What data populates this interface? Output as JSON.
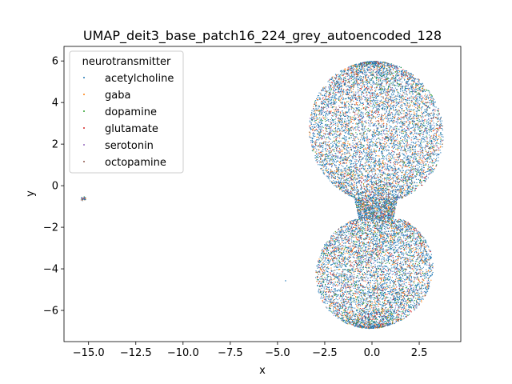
{
  "chart_data": {
    "type": "scatter",
    "title": "UMAP_deit3_base_patch16_224_grey_autoencoded_128",
    "xlabel": "x",
    "ylabel": "y",
    "xlim": [
      -16.3,
      4.7
    ],
    "ylim": [
      -7.5,
      6.7
    ],
    "xticks": [
      -15.0,
      -12.5,
      -10.0,
      -7.5,
      -5.0,
      -2.5,
      0.0,
      2.5
    ],
    "xtick_labels": [
      "−15.0",
      "−12.5",
      "−10.0",
      "−7.5",
      "−5.0",
      "−2.5",
      "0.0",
      "2.5"
    ],
    "yticks": [
      -6,
      -4,
      -2,
      0,
      2,
      4,
      6
    ],
    "ytick_labels": [
      "−6",
      "−4",
      "−2",
      "0",
      "2",
      "4",
      "6"
    ],
    "grid": false,
    "legend": {
      "title": "neurotransmitter",
      "placement": "top-left",
      "entries": [
        "acetylcholine",
        "gaba",
        "dopamine",
        "glutamate",
        "serotonin",
        "octopamine"
      ]
    },
    "series": [
      {
        "name": "acetylcholine",
        "color": "#1f77b4",
        "share": 0.62
      },
      {
        "name": "gaba",
        "color": "#ff7f0e",
        "share": 0.14
      },
      {
        "name": "dopamine",
        "color": "#2ca02c",
        "share": 0.08
      },
      {
        "name": "glutamate",
        "color": "#d62728",
        "share": 0.09
      },
      {
        "name": "serotonin",
        "color": "#9467bd",
        "share": 0.04
      },
      {
        "name": "octopamine",
        "color": "#8c564b",
        "share": 0.03
      }
    ],
    "clusters": [
      {
        "region": "upper lobe",
        "center": [
          0.0,
          2.6
        ],
        "x_range": [
          -3.4,
          3.8
        ],
        "y_range": [
          -0.6,
          6.0
        ]
      },
      {
        "region": "lower lobe",
        "center": [
          -0.1,
          -4.0
        ],
        "x_range": [
          -3.0,
          3.2
        ],
        "y_range": [
          -6.8,
          -1.5
        ]
      },
      {
        "region": "isolated cluster",
        "center": [
          -15.3,
          -0.6
        ],
        "x_range": [
          -15.5,
          -15.0
        ],
        "y_range": [
          -0.75,
          -0.5
        ]
      },
      {
        "region": "isolated point",
        "center": [
          -4.6,
          -4.55
        ]
      }
    ]
  }
}
